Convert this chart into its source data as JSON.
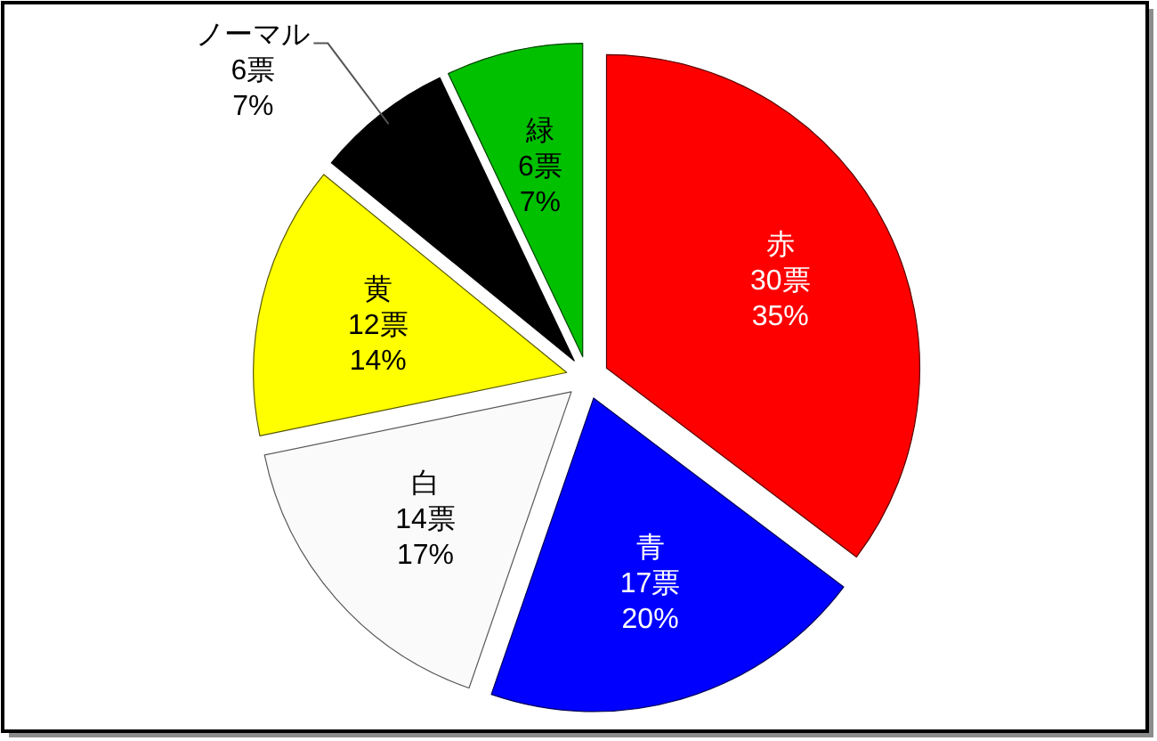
{
  "chart_data": {
    "type": "pie",
    "categories": [
      "赤",
      "青",
      "白",
      "黄",
      "ノーマル",
      "緑"
    ],
    "values": [
      30,
      17,
      14,
      12,
      6,
      6
    ],
    "colors": [
      "#ff0000",
      "#0000ff",
      "#fafafa",
      "#ffff00",
      "#000000",
      "#00c000"
    ],
    "value_labels": [
      "30票\n35%",
      "17票\n20%",
      "14票\n17%",
      "12票\n14%",
      "6票\n7%",
      "6票\n7%"
    ]
  }
}
